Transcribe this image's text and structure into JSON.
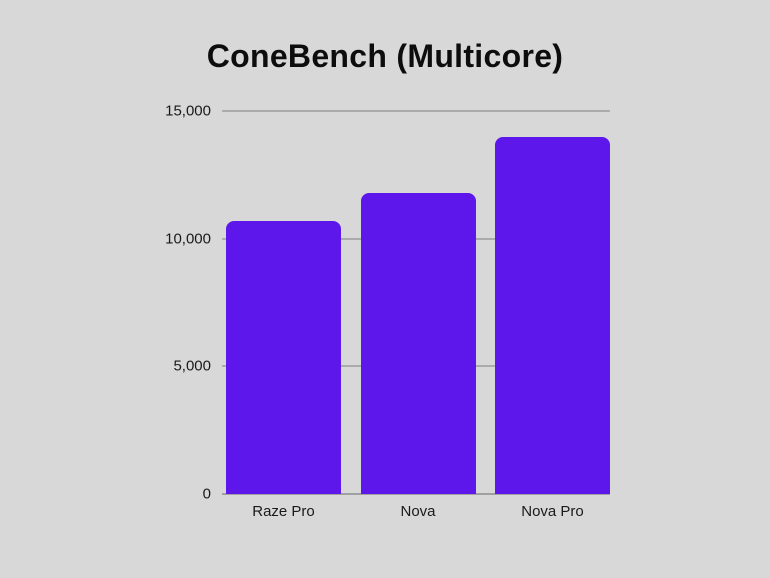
{
  "page": {
    "background_color": "#D8D8D8"
  },
  "chart_data": {
    "type": "bar",
    "title": "ConeBench (Multicore)",
    "categories": [
      "Raze Pro",
      "Nova",
      "Nova Pro"
    ],
    "values": [
      10700,
      11800,
      14000
    ],
    "xlabel": "",
    "ylabel": "",
    "ylim": [
      0,
      15000
    ],
    "yticks": [
      0,
      5000,
      10000,
      15000
    ],
    "ytick_labels": [
      "0",
      "5,000",
      "10,000",
      "15,000"
    ],
    "grid": true,
    "legend": false,
    "bar_color": "#5E17EB",
    "gridline_color": "#ABABAB",
    "axis_line_color": "#A0A0A0",
    "text_color": "#1A1A1A",
    "title_color": "#0D0D0D"
  }
}
